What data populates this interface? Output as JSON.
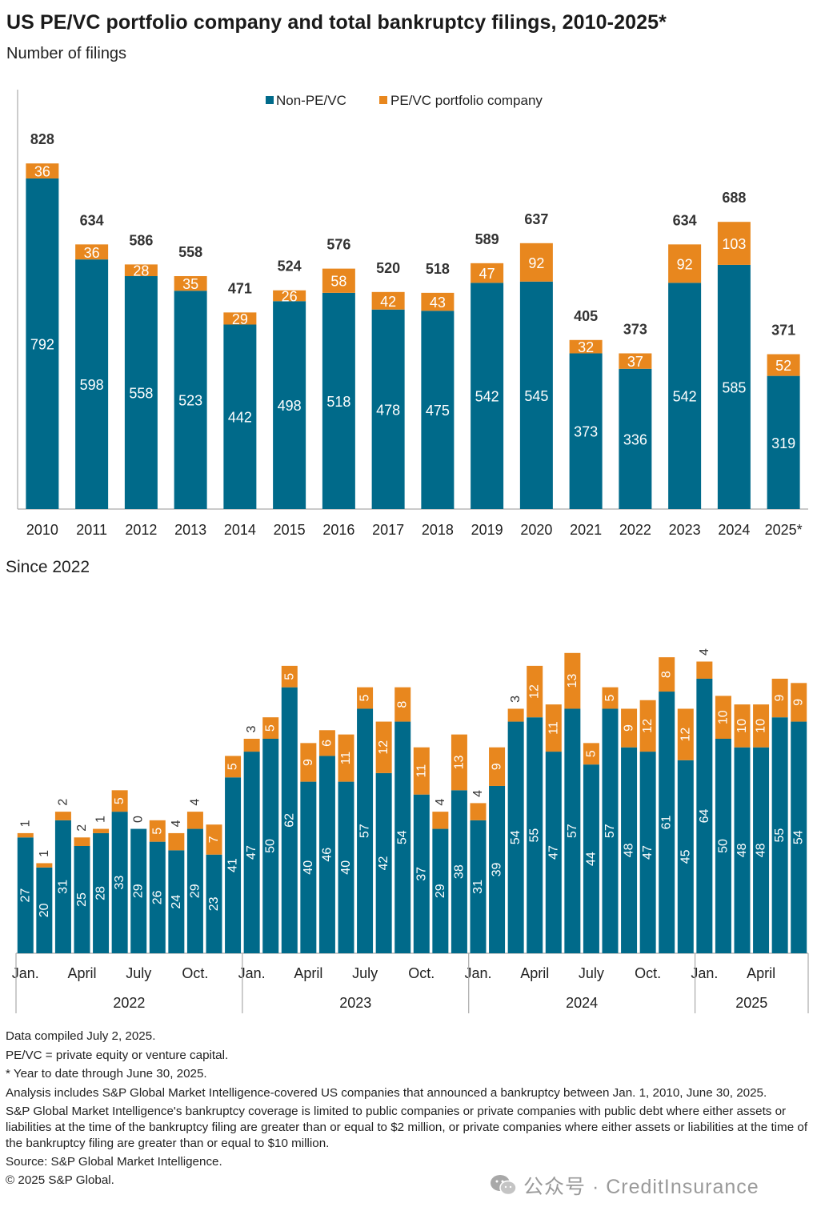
{
  "title": "US PE/VC portfolio company and total bankruptcy filings, 2010-2025*",
  "subtitle": "Number of filings",
  "colors": {
    "non_pevc": "#006A8A",
    "pevc": "#E8871E",
    "axis": "#aaaaaa"
  },
  "chart_data": [
    {
      "type": "bar",
      "stacked": true,
      "legend": {
        "position": "top-center",
        "items": [
          "Non-PE/VC",
          "PE/VC portfolio company"
        ]
      },
      "categories": [
        "2010",
        "2011",
        "2012",
        "2013",
        "2014",
        "2015",
        "2016",
        "2017",
        "2018",
        "2019",
        "2020",
        "2021",
        "2022",
        "2023",
        "2024",
        "2025*"
      ],
      "series": [
        {
          "name": "Non-PE/VC",
          "values": [
            792,
            598,
            558,
            523,
            442,
            498,
            518,
            478,
            475,
            542,
            545,
            373,
            336,
            542,
            585,
            319
          ]
        },
        {
          "name": "PE/VC portfolio company",
          "values": [
            36,
            36,
            28,
            35,
            29,
            26,
            58,
            42,
            43,
            47,
            92,
            32,
            37,
            92,
            103,
            52
          ]
        }
      ],
      "totals": [
        828,
        634,
        586,
        558,
        471,
        524,
        576,
        520,
        518,
        589,
        637,
        405,
        373,
        634,
        688,
        371
      ],
      "ylim": [
        0,
        1000
      ],
      "grid": false
    },
    {
      "type": "bar",
      "stacked": true,
      "title": "Since 2022",
      "x_tick_labels": [
        {
          "index": 0,
          "label": "Jan."
        },
        {
          "index": 3,
          "label": "April"
        },
        {
          "index": 6,
          "label": "July"
        },
        {
          "index": 9,
          "label": "Oct."
        },
        {
          "index": 12,
          "label": "Jan."
        },
        {
          "index": 15,
          "label": "April"
        },
        {
          "index": 18,
          "label": "July"
        },
        {
          "index": 21,
          "label": "Oct."
        },
        {
          "index": 24,
          "label": "Jan."
        },
        {
          "index": 27,
          "label": "April"
        },
        {
          "index": 30,
          "label": "July"
        },
        {
          "index": 33,
          "label": "Oct."
        },
        {
          "index": 36,
          "label": "Jan."
        },
        {
          "index": 39,
          "label": "April"
        }
      ],
      "year_groups": [
        {
          "label": "2022",
          "start": 0,
          "end": 11
        },
        {
          "label": "2023",
          "start": 12,
          "end": 23
        },
        {
          "label": "2024",
          "start": 24,
          "end": 35
        },
        {
          "label": "2025",
          "start": 36,
          "end": 41
        }
      ],
      "series": [
        {
          "name": "Non-PE/VC",
          "values": [
            27,
            20,
            31,
            25,
            28,
            33,
            29,
            26,
            24,
            29,
            23,
            41,
            47,
            50,
            62,
            40,
            46,
            40,
            57,
            42,
            54,
            37,
            29,
            38,
            31,
            39,
            54,
            55,
            47,
            57,
            44,
            57,
            48,
            47,
            61,
            45,
            64,
            50,
            48,
            48,
            55,
            54
          ]
        },
        {
          "name": "PE/VC portfolio company",
          "values": [
            1,
            1,
            2,
            2,
            1,
            5,
            0,
            5,
            4,
            4,
            7,
            5,
            3,
            5,
            5,
            9,
            6,
            11,
            5,
            12,
            8,
            11,
            4,
            13,
            4,
            9,
            3,
            12,
            11,
            13,
            5,
            5,
            9,
            12,
            8,
            12,
            4,
            10,
            10,
            10,
            9,
            9
          ]
        }
      ],
      "ylim": [
        0,
        80
      ],
      "grid": false
    }
  ],
  "notes": [
    "Data compiled July 2, 2025.",
    "PE/VC = private equity or venture capital.",
    "* Year to date through June 30, 2025.",
    "Analysis includes S&P Global Market Intelligence-covered US companies that announced a bankruptcy between Jan. 1, 2010, June 30, 2025.",
    "S&P Global Market Intelligence's bankruptcy coverage is limited to public companies or private companies with public debt where either assets or liabilities at the time of the bankruptcy filing are greater than or equal to $2 million, or private companies where either assets or liabilities at the time of the bankruptcy filing are greater than or equal to $10 million.",
    "Source: S&P Global Market Intelligence.",
    "© 2025 S&P Global."
  ],
  "watermark": "公众号 · CreditInsurance"
}
